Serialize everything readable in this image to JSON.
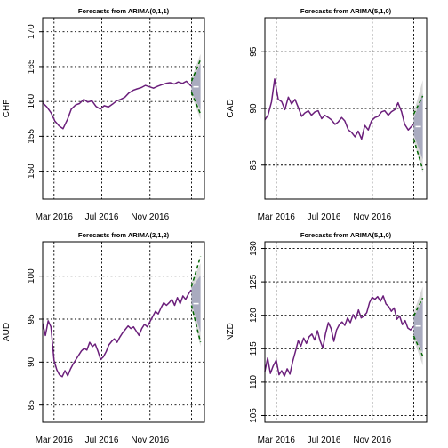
{
  "colors": {
    "series": "#6b1f7b",
    "pi95": "#d9d9d9",
    "pi80": "#a9abbf",
    "forecast_mean": "#ffffff",
    "interval_line": "#006400"
  },
  "chart_data": [
    {
      "type": "line",
      "title": "Forecasts from ARIMA(0,1,1)",
      "ylabel": "CHF",
      "x_range": [
        "2016-02-01",
        "2017-03-20"
      ],
      "xticks": [
        {
          "date": "2016-03-01",
          "label": "Mar 2016"
        },
        {
          "date": "2016-07-01",
          "label": "Jul 2016"
        },
        {
          "date": "2016-11-01",
          "label": "Nov 2016"
        }
      ],
      "ylim": [
        146,
        172
      ],
      "yticks": [
        150,
        155,
        160,
        165,
        170
      ],
      "grid": true,
      "forecast_start": "2017-02-15",
      "forecast_end": "2017-03-10",
      "history": [
        [
          "2016-02-01",
          159.8
        ],
        [
          "2016-02-12",
          159.2
        ],
        [
          "2016-02-22",
          158.4
        ],
        [
          "2016-03-03",
          157.2
        ],
        [
          "2016-03-14",
          156.5
        ],
        [
          "2016-03-24",
          156.1
        ],
        [
          "2016-04-04",
          157.4
        ],
        [
          "2016-04-14",
          158.9
        ],
        [
          "2016-04-25",
          159.5
        ],
        [
          "2016-05-05",
          159.7
        ],
        [
          "2016-05-16",
          160.3
        ],
        [
          "2016-05-26",
          159.9
        ],
        [
          "2016-06-06",
          160.1
        ],
        [
          "2016-06-16",
          159.3
        ],
        [
          "2016-06-27",
          158.9
        ],
        [
          "2016-07-07",
          159.4
        ],
        [
          "2016-07-18",
          159.2
        ],
        [
          "2016-07-28",
          159.6
        ],
        [
          "2016-08-08",
          160.1
        ],
        [
          "2016-08-18",
          160.3
        ],
        [
          "2016-08-29",
          160.6
        ],
        [
          "2016-09-08",
          161.2
        ],
        [
          "2016-09-19",
          161.6
        ],
        [
          "2016-09-29",
          161.8
        ],
        [
          "2016-10-10",
          162.0
        ],
        [
          "2016-10-20",
          162.3
        ],
        [
          "2016-10-31",
          162.1
        ],
        [
          "2016-11-10",
          161.9
        ],
        [
          "2016-11-21",
          162.2
        ],
        [
          "2016-12-01",
          162.4
        ],
        [
          "2016-12-12",
          162.6
        ],
        [
          "2016-12-22",
          162.7
        ],
        [
          "2017-01-02",
          162.5
        ],
        [
          "2017-01-12",
          162.8
        ],
        [
          "2017-01-23",
          162.6
        ],
        [
          "2017-02-02",
          162.9
        ],
        [
          "2017-02-14",
          162.2
        ]
      ],
      "forecast": 162.1,
      "pi80": [
        [
          161.4,
          162.8
        ],
        [
          158.8,
          165.4
        ]
      ],
      "pi95": [
        [
          160.9,
          163.3
        ],
        [
          157.4,
          166.8
        ]
      ],
      "outer": [
        [
          161.3,
          162.9
        ],
        [
          158.2,
          166.0
        ]
      ]
    },
    {
      "type": "line",
      "title": "Forecasts from ARIMA(5,1,0)",
      "ylabel": "CAD",
      "x_range": [
        "2016-02-01",
        "2017-03-20"
      ],
      "xticks": [
        {
          "date": "2016-03-01",
          "label": "Mar 2016"
        },
        {
          "date": "2016-07-01",
          "label": "Jul 2016"
        },
        {
          "date": "2016-11-01",
          "label": "Nov 2016"
        }
      ],
      "ylim": [
        82,
        98
      ],
      "yticks": [
        85,
        90,
        95
      ],
      "grid": true,
      "forecast_start": "2017-02-15",
      "forecast_end": "2017-03-10",
      "history": [
        [
          "2016-02-01",
          89.0
        ],
        [
          "2016-02-09",
          89.4
        ],
        [
          "2016-02-18",
          90.6
        ],
        [
          "2016-02-26",
          92.6
        ],
        [
          "2016-03-06",
          90.8
        ],
        [
          "2016-03-15",
          90.6
        ],
        [
          "2016-03-23",
          89.9
        ],
        [
          "2016-04-01",
          91.0
        ],
        [
          "2016-04-09",
          90.4
        ],
        [
          "2016-04-18",
          90.8
        ],
        [
          "2016-04-26",
          90.1
        ],
        [
          "2016-05-05",
          89.3
        ],
        [
          "2016-05-13",
          89.6
        ],
        [
          "2016-05-22",
          89.8
        ],
        [
          "2016-05-30",
          89.4
        ],
        [
          "2016-06-08",
          89.7
        ],
        [
          "2016-06-16",
          89.8
        ],
        [
          "2016-06-25",
          89.1
        ],
        [
          "2016-07-03",
          89.4
        ],
        [
          "2016-07-12",
          89.2
        ],
        [
          "2016-07-20",
          89.0
        ],
        [
          "2016-07-29",
          88.6
        ],
        [
          "2016-08-06",
          88.8
        ],
        [
          "2016-08-15",
          89.2
        ],
        [
          "2016-08-23",
          88.9
        ],
        [
          "2016-09-01",
          88.1
        ],
        [
          "2016-09-09",
          87.9
        ],
        [
          "2016-09-18",
          87.5
        ],
        [
          "2016-09-26",
          88.0
        ],
        [
          "2016-10-05",
          87.3
        ],
        [
          "2016-10-13",
          88.5
        ],
        [
          "2016-10-22",
          88.1
        ],
        [
          "2016-10-30",
          88.9
        ],
        [
          "2016-11-08",
          89.2
        ],
        [
          "2016-11-16",
          89.3
        ],
        [
          "2016-11-25",
          89.7
        ],
        [
          "2016-12-03",
          89.8
        ],
        [
          "2016-12-12",
          89.4
        ],
        [
          "2016-12-20",
          89.7
        ],
        [
          "2016-12-29",
          89.9
        ],
        [
          "2017-01-06",
          90.5
        ],
        [
          "2017-01-15",
          89.7
        ],
        [
          "2017-01-23",
          88.6
        ],
        [
          "2017-02-01",
          88.1
        ],
        [
          "2017-02-14",
          88.6
        ]
      ],
      "forecast": 88.4,
      "pi80": [
        [
          87.7,
          89.1
        ],
        [
          85.5,
          91.3
        ]
      ],
      "pi95": [
        [
          87.2,
          89.6
        ],
        [
          84.3,
          92.5
        ]
      ],
      "outer": [
        [
          87.3,
          89.5
        ],
        [
          84.6,
          91.1
        ]
      ]
    },
    {
      "type": "line",
      "title": "Forecasts from ARIMA(2,1,2)",
      "ylabel": "AUD",
      "x_range": [
        "2016-02-01",
        "2017-03-20"
      ],
      "xticks": [
        {
          "date": "2016-03-01",
          "label": "Mar 2016"
        },
        {
          "date": "2016-07-01",
          "label": "Jul 2016"
        },
        {
          "date": "2016-11-01",
          "label": "Nov 2016"
        }
      ],
      "ylim": [
        83,
        104
      ],
      "yticks": [
        85,
        90,
        95,
        100
      ],
      "grid": true,
      "forecast_start": "2017-02-15",
      "forecast_end": "2017-03-10",
      "history": [
        [
          "2016-02-01",
          94.5
        ],
        [
          "2016-02-08",
          93.1
        ],
        [
          "2016-02-15",
          94.8
        ],
        [
          "2016-02-22",
          94.1
        ],
        [
          "2016-03-01",
          90.2
        ],
        [
          "2016-03-08",
          89.1
        ],
        [
          "2016-03-15",
          88.5
        ],
        [
          "2016-03-22",
          88.3
        ],
        [
          "2016-03-29",
          89.0
        ],
        [
          "2016-04-05",
          88.4
        ],
        [
          "2016-04-12",
          89.2
        ],
        [
          "2016-04-19",
          89.8
        ],
        [
          "2016-04-26",
          90.3
        ],
        [
          "2016-05-03",
          90.8
        ],
        [
          "2016-05-10",
          91.3
        ],
        [
          "2016-05-17",
          91.6
        ],
        [
          "2016-05-24",
          91.4
        ],
        [
          "2016-05-31",
          92.3
        ],
        [
          "2016-06-07",
          91.8
        ],
        [
          "2016-06-14",
          92.1
        ],
        [
          "2016-06-21",
          91.3
        ],
        [
          "2016-06-28",
          90.3
        ],
        [
          "2016-07-05",
          90.6
        ],
        [
          "2016-07-12",
          91.2
        ],
        [
          "2016-07-19",
          92.0
        ],
        [
          "2016-07-26",
          92.4
        ],
        [
          "2016-08-02",
          92.7
        ],
        [
          "2016-08-09",
          92.3
        ],
        [
          "2016-08-16",
          92.9
        ],
        [
          "2016-08-23",
          93.4
        ],
        [
          "2016-08-30",
          93.8
        ],
        [
          "2016-09-06",
          94.2
        ],
        [
          "2016-09-13",
          93.9
        ],
        [
          "2016-09-20",
          94.1
        ],
        [
          "2016-09-27",
          93.6
        ],
        [
          "2016-10-04",
          93.1
        ],
        [
          "2016-10-11",
          93.9
        ],
        [
          "2016-10-18",
          94.4
        ],
        [
          "2016-10-25",
          94.1
        ],
        [
          "2016-11-01",
          94.7
        ],
        [
          "2016-11-08",
          95.3
        ],
        [
          "2016-11-15",
          95.9
        ],
        [
          "2016-11-22",
          95.6
        ],
        [
          "2016-11-29",
          96.3
        ],
        [
          "2016-12-06",
          96.9
        ],
        [
          "2016-12-13",
          96.6
        ],
        [
          "2016-12-20",
          96.9
        ],
        [
          "2016-12-27",
          97.3
        ],
        [
          "2017-01-03",
          96.6
        ],
        [
          "2017-01-10",
          97.5
        ],
        [
          "2017-01-17",
          96.8
        ],
        [
          "2017-01-24",
          97.7
        ],
        [
          "2017-01-31",
          97.3
        ],
        [
          "2017-02-07",
          97.9
        ],
        [
          "2017-02-14",
          98.4
        ]
      ],
      "forecast": 96.8,
      "pi80": [
        [
          96.8,
          98.6
        ],
        [
          93.5,
          100.1
        ]
      ],
      "pi95": [
        [
          96.2,
          99.3
        ],
        [
          91.8,
          101.5
        ]
      ],
      "outer": [
        [
          96.6,
          98.8
        ],
        [
          92.3,
          102.3
        ]
      ]
    },
    {
      "type": "line",
      "title": "Forecasts from ARIMA(5,1,0)",
      "ylabel": "NZD",
      "x_range": [
        "2016-02-01",
        "2017-03-20"
      ],
      "xticks": [
        {
          "date": "2016-03-01",
          "label": "Mar 2016"
        },
        {
          "date": "2016-07-01",
          "label": "Jul 2016"
        },
        {
          "date": "2016-11-01",
          "label": "Nov 2016"
        }
      ],
      "ylim": [
        104,
        131
      ],
      "yticks": [
        105,
        110,
        115,
        120,
        125,
        130
      ],
      "grid": true,
      "forecast_start": "2017-02-15",
      "forecast_end": "2017-03-10",
      "history": [
        [
          "2016-02-01",
          111.6
        ],
        [
          "2016-02-08",
          113.6
        ],
        [
          "2016-02-15",
          111.3
        ],
        [
          "2016-02-22",
          112.4
        ],
        [
          "2016-03-01",
          113.3
        ],
        [
          "2016-03-08",
          111.1
        ],
        [
          "2016-03-15",
          111.7
        ],
        [
          "2016-03-22",
          110.9
        ],
        [
          "2016-03-29",
          112.0
        ],
        [
          "2016-04-05",
          111.2
        ],
        [
          "2016-04-12",
          113.1
        ],
        [
          "2016-04-19",
          114.6
        ],
        [
          "2016-04-26",
          116.2
        ],
        [
          "2016-05-03",
          115.4
        ],
        [
          "2016-05-10",
          116.6
        ],
        [
          "2016-05-17",
          115.8
        ],
        [
          "2016-05-24",
          116.8
        ],
        [
          "2016-05-31",
          117.2
        ],
        [
          "2016-06-07",
          116.3
        ],
        [
          "2016-06-14",
          117.7
        ],
        [
          "2016-06-21",
          116.2
        ],
        [
          "2016-06-28",
          115.1
        ],
        [
          "2016-07-05",
          117.3
        ],
        [
          "2016-07-12",
          118.9
        ],
        [
          "2016-07-19",
          118.0
        ],
        [
          "2016-07-26",
          116.1
        ],
        [
          "2016-08-02",
          117.8
        ],
        [
          "2016-08-09",
          118.6
        ],
        [
          "2016-08-16",
          119.0
        ],
        [
          "2016-08-23",
          118.5
        ],
        [
          "2016-08-30",
          119.6
        ],
        [
          "2016-09-06",
          118.9
        ],
        [
          "2016-09-13",
          120.1
        ],
        [
          "2016-09-20",
          119.4
        ],
        [
          "2016-09-27",
          120.8
        ],
        [
          "2016-10-04",
          119.6
        ],
        [
          "2016-10-11",
          119.9
        ],
        [
          "2016-10-18",
          120.4
        ],
        [
          "2016-10-25",
          121.9
        ],
        [
          "2016-11-01",
          122.7
        ],
        [
          "2016-11-08",
          122.4
        ],
        [
          "2016-11-15",
          122.8
        ],
        [
          "2016-11-22",
          122.1
        ],
        [
          "2016-11-29",
          122.9
        ],
        [
          "2016-12-06",
          121.7
        ],
        [
          "2016-12-13",
          121.3
        ],
        [
          "2016-12-20",
          120.6
        ],
        [
          "2016-12-27",
          121.1
        ],
        [
          "2017-01-03",
          119.4
        ],
        [
          "2017-01-10",
          119.9
        ],
        [
          "2017-01-17",
          118.6
        ],
        [
          "2017-01-24",
          119.2
        ],
        [
          "2017-01-31",
          118.1
        ],
        [
          "2017-02-07",
          117.8
        ],
        [
          "2017-02-14",
          118.3
        ]
      ],
      "forecast": 118.4,
      "pi80": [
        [
          117.1,
          119.7
        ],
        [
          114.4,
          122.2
        ]
      ],
      "pi95": [
        [
          116.4,
          120.4
        ],
        [
          112.5,
          124.3
        ]
      ],
      "outer": [
        [
          116.9,
          119.9
        ],
        [
          113.9,
          122.6
        ]
      ]
    }
  ]
}
